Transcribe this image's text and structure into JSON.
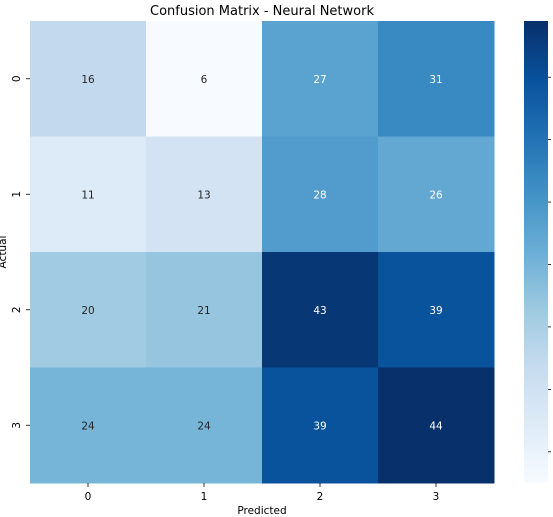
{
  "chart_data": {
    "type": "heatmap",
    "title": "Confusion Matrix - Neural Network",
    "xlabel": "Predicted",
    "ylabel": "Actual",
    "x_categories": [
      "0",
      "1",
      "2",
      "3"
    ],
    "y_categories": [
      "0",
      "1",
      "2",
      "3"
    ],
    "values": [
      [
        16,
        6,
        27,
        31
      ],
      [
        11,
        13,
        28,
        26
      ],
      [
        20,
        21,
        43,
        39
      ],
      [
        24,
        24,
        39,
        44
      ]
    ],
    "colormap": "Blues",
    "value_range": [
      6,
      44
    ],
    "colorbar_ticks": 7
  },
  "colors": {
    "low": "#f7fbff",
    "high": "#08306b",
    "text_dark": "#262626",
    "text_light": "#ffffff"
  }
}
